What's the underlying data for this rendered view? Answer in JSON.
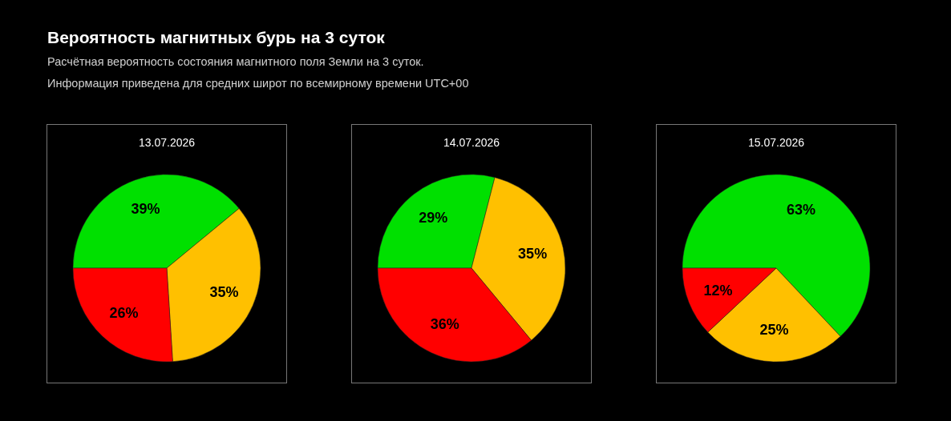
{
  "chart_data": [
    {
      "type": "other",
      "title": "Вероятность магнитных бурь на 3 суток",
      "subtitle": "Расчётная вероятность состояния магнитного поля Земли на 3 суток.",
      "annotations": [
        "Информация приведена для средних широт по всемирному времени UTC+00"
      ]
    },
    {
      "type": "pie",
      "title": "13.07.2026",
      "categories": [
        null,
        null,
        null
      ],
      "values": [
        39,
        35,
        26
      ],
      "colors": [
        "#00e000",
        "#ffc000",
        "#ff0000"
      ],
      "value_labels": [
        "39%",
        "35%",
        "26%"
      ]
    },
    {
      "type": "pie",
      "title": "14.07.2026",
      "categories": [
        null,
        null,
        null
      ],
      "values": [
        29,
        35,
        36
      ],
      "colors": [
        "#00e000",
        "#ffc000",
        "#ff0000"
      ],
      "value_labels": [
        "29%",
        "35%",
        "36%"
      ]
    },
    {
      "type": "pie",
      "title": "15.07.2026",
      "categories": [
        null,
        null,
        null
      ],
      "values": [
        63,
        25,
        12
      ],
      "colors": [
        "#00e000",
        "#ffc000",
        "#ff0000"
      ],
      "value_labels": [
        "63%",
        "25%",
        "12%"
      ]
    }
  ]
}
